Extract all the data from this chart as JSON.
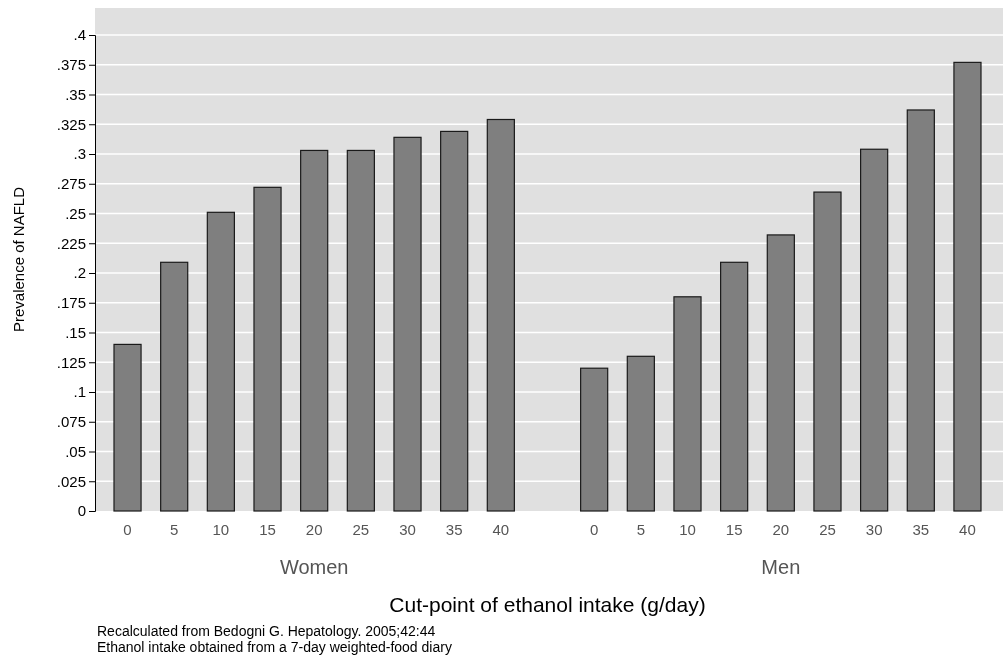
{
  "chart_data": {
    "type": "bar",
    "xlabel": "Cut-point of ethanol intake (g/day)",
    "ylabel": "Prevalence of NAFLD",
    "categories": [
      "0",
      "5",
      "10",
      "15",
      "20",
      "25",
      "30",
      "35",
      "40",
      null,
      "0",
      "5",
      "10",
      "15",
      "20",
      "25",
      "30",
      "35",
      "40"
    ],
    "values": [
      0.14,
      0.209,
      0.251,
      0.272,
      0.303,
      0.303,
      0.314,
      0.319,
      0.329,
      null,
      0.12,
      0.13,
      0.18,
      0.209,
      0.232,
      0.268,
      0.304,
      0.337,
      0.377
    ],
    "color": "#7f7f7f",
    "ylim": [
      0,
      0.4
    ],
    "yticks": [
      0,
      {
        "value": 0.025,
        "label": ".025"
      },
      {
        "value": 0.05,
        "label": ".05"
      },
      {
        "value": 0.075,
        "label": ".075"
      },
      {
        "value": 0.1,
        "label": ".1"
      },
      {
        "value": 0.125,
        "label": ".125"
      },
      {
        "value": 0.15,
        "label": ".15"
      },
      {
        "value": 0.175,
        "label": ".175"
      },
      {
        "value": 0.2,
        "label": ".2"
      },
      {
        "value": 0.225,
        "label": ".225"
      },
      {
        "value": 0.25,
        "label": ".25"
      },
      {
        "value": 0.275,
        "label": ".275"
      },
      {
        "value": 0.3,
        "label": ".3"
      },
      {
        "value": 0.325,
        "label": ".325"
      },
      {
        "value": 0.35,
        "label": ".35"
      },
      {
        "value": 0.375,
        "label": ".375"
      },
      {
        "value": 0.4,
        "label": ".4"
      }
    ],
    "grid": "y",
    "annotations": [
      "Women",
      "Men",
      "Recalculated from Bedogni G. Hepatology. 2005;42:44",
      "Ethanol intake obtained from a 7-day weighted-food diary"
    ]
  }
}
